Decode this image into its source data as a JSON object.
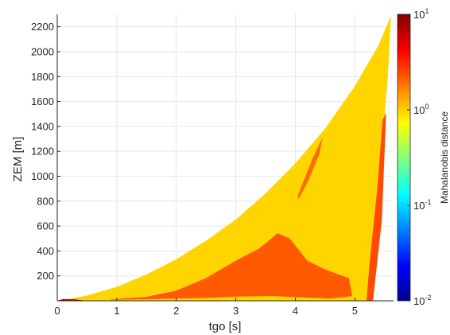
{
  "chart_data": {
    "type": "heatmap",
    "xlabel": "tgo [s]",
    "ylabel": "ZEM [m]",
    "xlim": [
      0,
      5.65
    ],
    "ylim": [
      0,
      2300
    ],
    "x_ticks": [
      0,
      1,
      2,
      3,
      4,
      5
    ],
    "y_ticks": [
      200,
      400,
      600,
      800,
      1000,
      1200,
      1400,
      1600,
      1800,
      2000,
      2200
    ],
    "grid": true,
    "colormap": "jet",
    "colorbar": {
      "label": "Mahalanobis distance",
      "scale": "log",
      "range": [
        0.01,
        10
      ],
      "ticks": [
        {
          "value": 0.01,
          "base": "10",
          "exp": "-2"
        },
        {
          "value": 0.1,
          "base": "10",
          "exp": "-1"
        },
        {
          "value": 1,
          "base": "10",
          "exp": "0"
        },
        {
          "value": 10,
          "base": "10",
          "exp": "1"
        }
      ]
    },
    "regions": [
      {
        "name": "upper-envelope",
        "value": 1.2,
        "color": "#ffd500",
        "points": [
          [
            0,
            0
          ],
          [
            0.2,
            12
          ],
          [
            0.5,
            40
          ],
          [
            1.0,
            110
          ],
          [
            1.5,
            210
          ],
          [
            2.0,
            330
          ],
          [
            2.5,
            480
          ],
          [
            3.0,
            650
          ],
          [
            3.5,
            860
          ],
          [
            4.0,
            1100
          ],
          [
            4.5,
            1380
          ],
          [
            5.0,
            1720
          ],
          [
            5.4,
            2050
          ],
          [
            5.6,
            2280
          ],
          [
            5.55,
            1800
          ],
          [
            5.45,
            1200
          ],
          [
            5.35,
            600
          ],
          [
            5.28,
            200
          ],
          [
            5.25,
            0
          ]
        ]
      },
      {
        "name": "high-distance-band",
        "value": 3.0,
        "color": "#ff5a00",
        "points": [
          [
            0.9,
            10
          ],
          [
            1.5,
            30
          ],
          [
            2.0,
            80
          ],
          [
            2.5,
            180
          ],
          [
            3.0,
            320
          ],
          [
            3.4,
            420
          ],
          [
            3.7,
            540
          ],
          [
            3.9,
            500
          ],
          [
            4.2,
            320
          ],
          [
            4.5,
            250
          ],
          [
            4.9,
            180
          ],
          [
            4.95,
            40
          ],
          [
            4.6,
            20
          ],
          [
            4.1,
            30
          ],
          [
            3.6,
            40
          ],
          [
            3.0,
            35
          ],
          [
            2.5,
            25
          ],
          [
            2.0,
            20
          ],
          [
            1.5,
            15
          ]
        ]
      },
      {
        "name": "right-edge-strip",
        "value": 3.5,
        "color": "#ff4a00",
        "points": [
          [
            5.3,
            0
          ],
          [
            5.45,
            650
          ],
          [
            5.52,
            1500
          ],
          [
            5.47,
            1450
          ],
          [
            5.38,
            900
          ],
          [
            5.25,
            300
          ],
          [
            5.2,
            0
          ]
        ]
      },
      {
        "name": "mid-strip",
        "value": 2.5,
        "color": "#ff6a00",
        "points": [
          [
            4.05,
            850
          ],
          [
            4.3,
            1150
          ],
          [
            4.45,
            1300
          ],
          [
            4.4,
            1180
          ],
          [
            4.2,
            950
          ],
          [
            4.05,
            820
          ]
        ]
      },
      {
        "name": "low-origin-band",
        "value": 8.0,
        "color": "#c00000",
        "points": [
          [
            0,
            0
          ],
          [
            0.1,
            12
          ],
          [
            0.3,
            10
          ],
          [
            0.45,
            0
          ]
        ]
      }
    ]
  }
}
